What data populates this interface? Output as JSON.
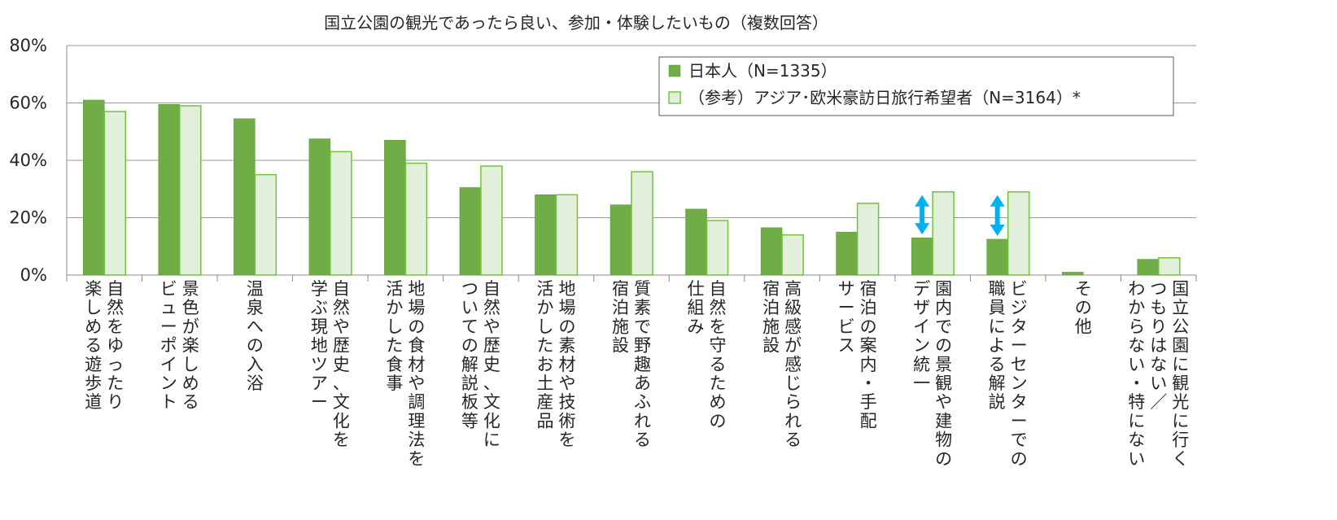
{
  "chart_data": {
    "type": "bar",
    "title": "国立公園の観光であったら良い、参加・体験したいもの（複数回答）",
    "y_ticks": [
      "0%",
      "20%",
      "40%",
      "60%",
      "80%"
    ],
    "ylim": [
      0,
      80
    ],
    "grid": true,
    "legend_position": "top-right",
    "categories": [
      [
        "自然をゆったり",
        "楽しめる遊歩道"
      ],
      [
        "景色が楽しめる",
        "ビューポイント"
      ],
      [
        "温泉への入浴"
      ],
      [
        "自然や歴史、文化を",
        "学ぶ現地ツアー"
      ],
      [
        "地場の食材や調理法を",
        "活かした食事"
      ],
      [
        "自然や歴史、文化に",
        "ついての解説板等"
      ],
      [
        "地場の素材や技術を",
        "活かしたお土産品"
      ],
      [
        "質素で野趣あふれる",
        "宿泊施設"
      ],
      [
        "自然を守るための",
        "仕組み"
      ],
      [
        "高級感が感じられる",
        "宿泊施設"
      ],
      [
        "宿泊の案内・手配",
        "サービス"
      ],
      [
        "園内での景観や建物の",
        "デザイン統一"
      ],
      [
        "ビジターセンターでの",
        "職員による解説"
      ],
      [
        "その他"
      ],
      [
        "国立公園に観光に行く",
        "つもりはない／",
        "わからない・特にない"
      ]
    ],
    "series": [
      {
        "name": "日本人（N=1335）",
        "color": "#70ad47",
        "edge": "#5a8f38",
        "values": [
          61,
          59.5,
          54.5,
          47.5,
          47,
          30.5,
          28,
          24.5,
          23,
          16.5,
          15,
          13,
          12.5,
          1,
          5.5
        ]
      },
      {
        "name": "（参考）アジア･欧米豪訪日旅行希望者（N=3164）*",
        "color": "#e2efda",
        "edge": "#70c43c",
        "values": [
          57,
          59,
          35,
          43,
          39,
          38,
          28,
          36,
          19,
          14,
          25,
          29,
          29,
          0,
          6
        ]
      }
    ],
    "annotations": [
      {
        "type": "double-arrow",
        "category_index": 11,
        "color": "#00b0f0"
      },
      {
        "type": "double-arrow",
        "category_index": 12,
        "color": "#00b0f0"
      }
    ]
  }
}
